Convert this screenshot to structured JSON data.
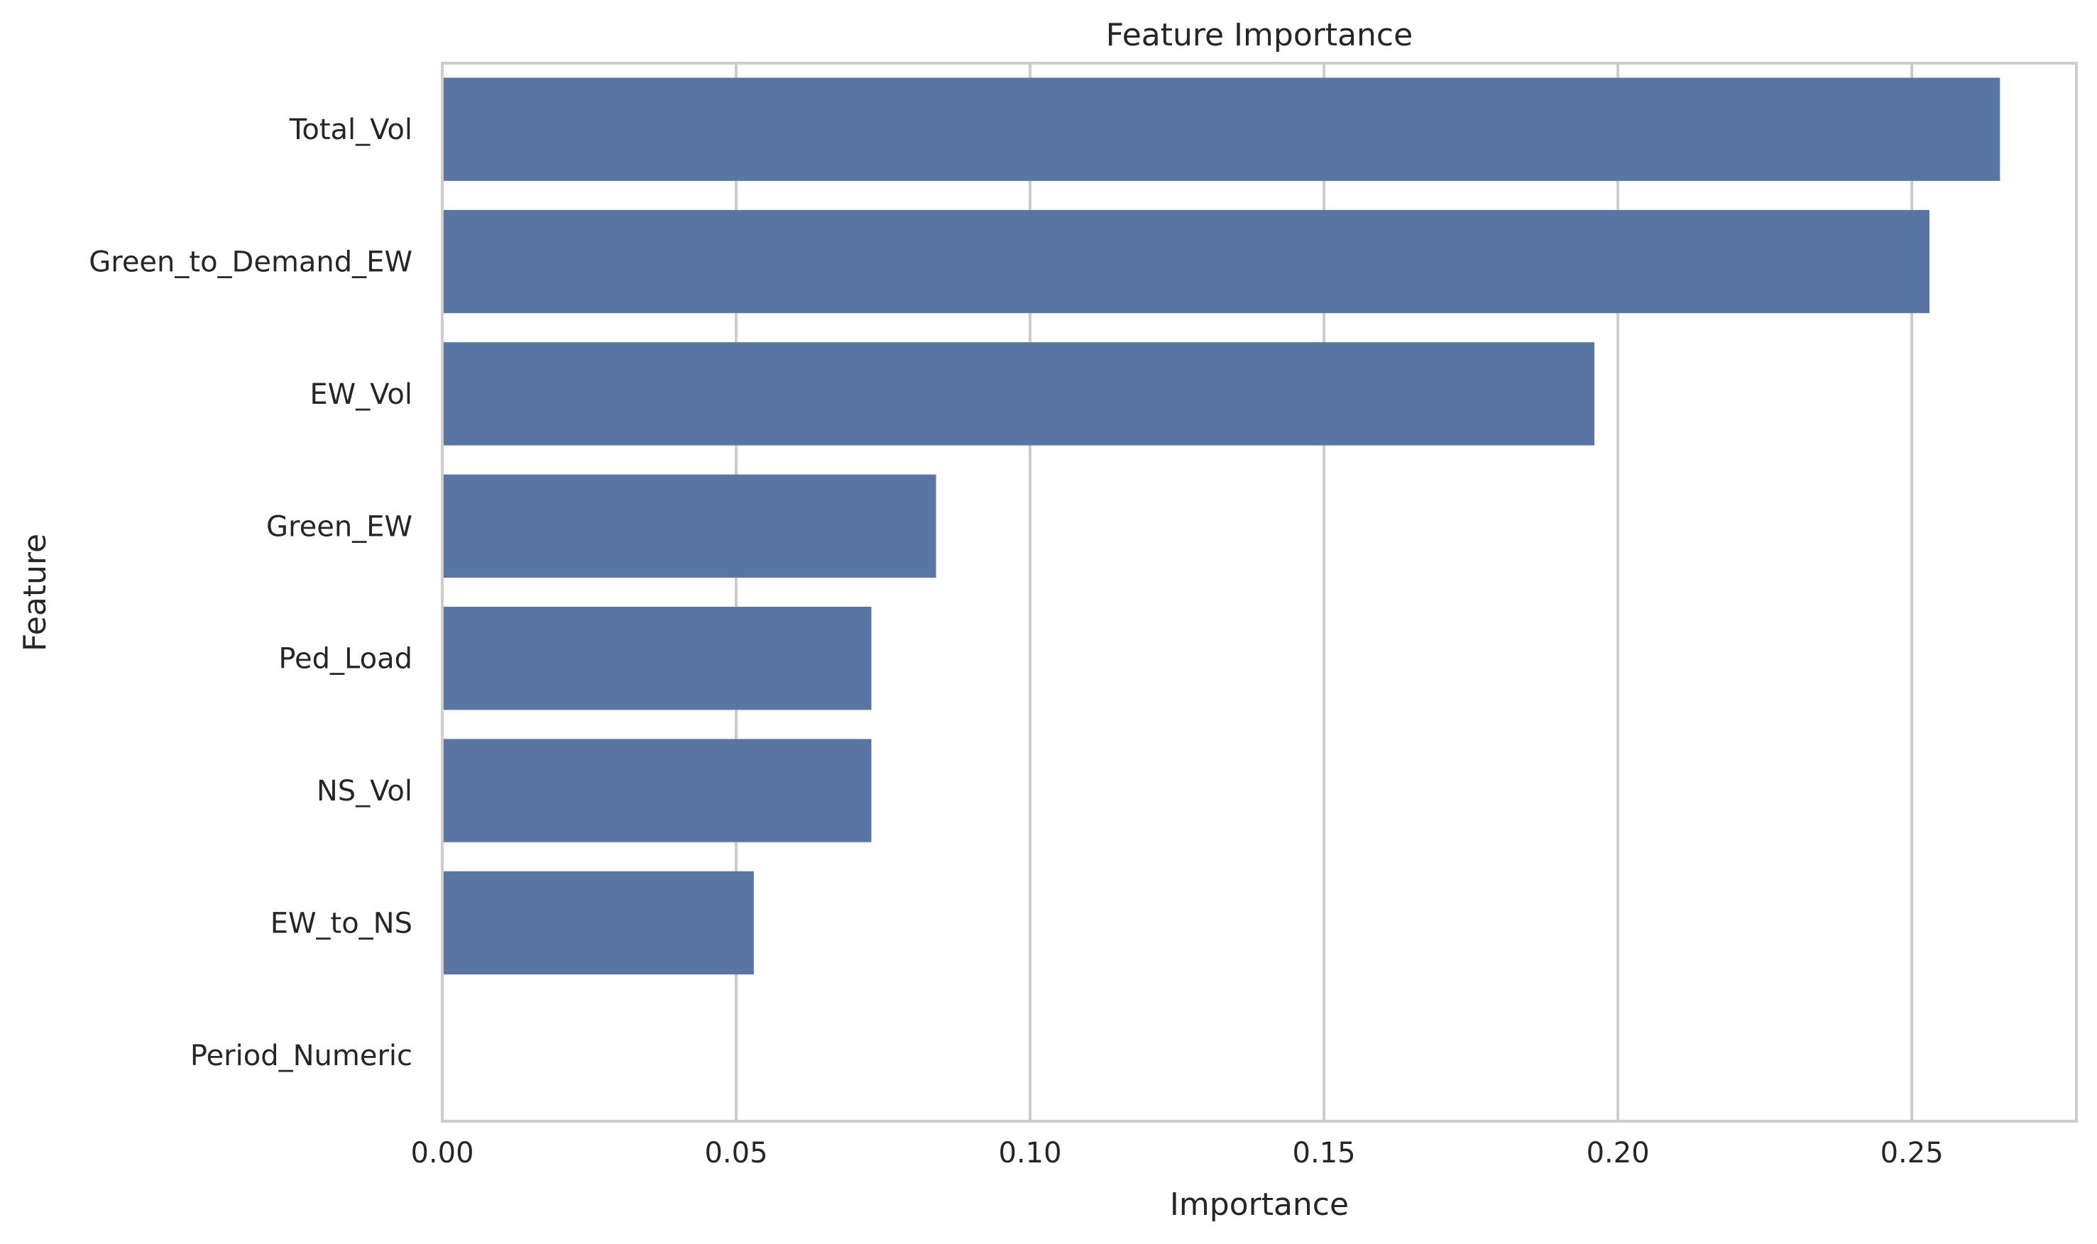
{
  "chart_data": {
    "type": "bar",
    "orientation": "horizontal",
    "title": "Feature Importance",
    "xlabel": "Importance",
    "ylabel": "Feature",
    "categories": [
      "Total_Vol",
      "Green_to_Demand_EW",
      "EW_Vol",
      "Green_EW",
      "Ped_Load",
      "NS_Vol",
      "EW_to_NS",
      "Period_Numeric"
    ],
    "values": [
      0.265,
      0.253,
      0.196,
      0.084,
      0.073,
      0.073,
      0.053,
      0.0
    ],
    "xlim": [
      0,
      0.278
    ],
    "xticks": [
      0,
      0.05,
      0.1,
      0.15,
      0.2,
      0.25
    ],
    "xtick_labels": [
      "0.00",
      "0.05",
      "0.10",
      "0.15",
      "0.20",
      "0.25"
    ],
    "grid": "vertical",
    "bar_color": "#5875a4",
    "grid_color": "#cccccc",
    "text_color": "#262626"
  }
}
